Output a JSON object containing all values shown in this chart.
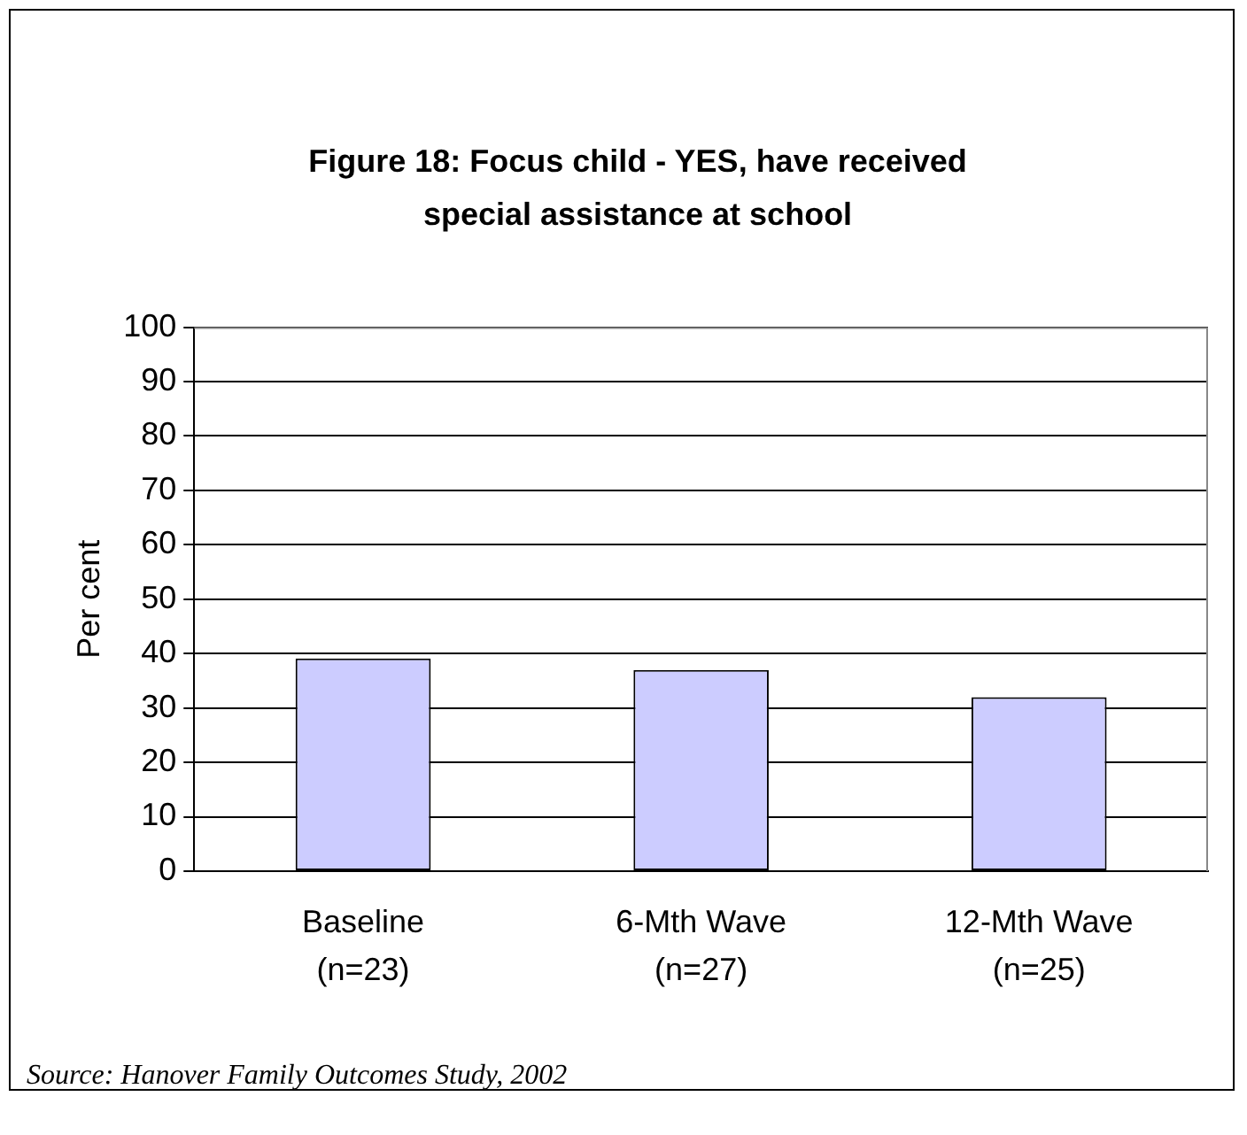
{
  "chart_data": {
    "type": "bar",
    "title": "Figure 18: Focus child - YES, have received special assistance at school",
    "ylabel": "Per cent",
    "categories": [
      "Baseline\n(n=23)",
      "6-Mth Wave\n(n=27)",
      "12-Mth Wave\n(n=25)"
    ],
    "values": [
      39.1,
      37,
      32
    ],
    "color": "#ccccff",
    "ylim": [
      0,
      100
    ],
    "yticks": [
      0,
      10,
      20,
      30,
      40,
      50,
      60,
      70,
      80,
      90,
      100
    ],
    "grid": "y",
    "legend": false,
    "annotations": [
      "Source: Hanover Family Outcomes Study, 2002"
    ]
  }
}
